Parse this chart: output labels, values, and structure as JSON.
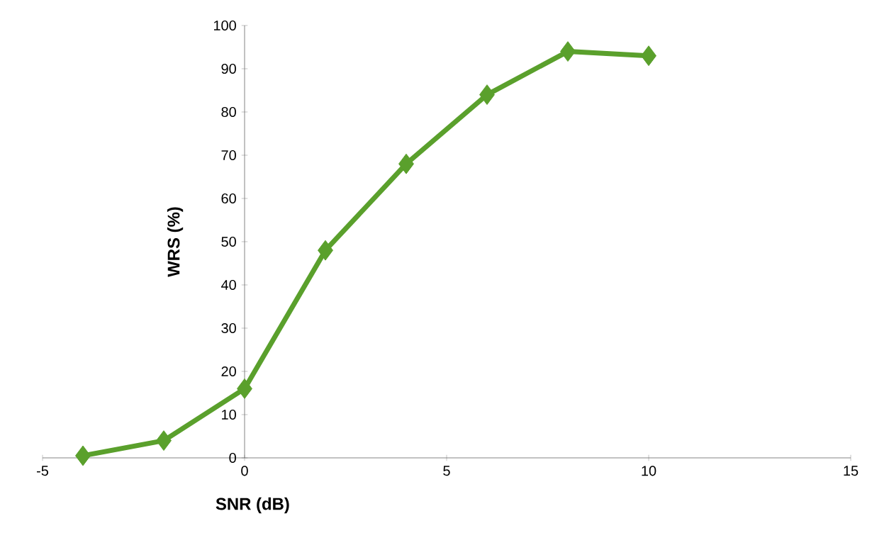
{
  "chart_data": {
    "type": "line",
    "xlabel": "SNR (dB)",
    "ylabel": "WRS (%)",
    "x": [
      -4,
      -2,
      0,
      2,
      4,
      6,
      8,
      10
    ],
    "values": [
      0.5,
      4,
      16,
      48,
      68,
      84,
      94,
      93
    ],
    "color": "#5aa02c",
    "marker": "diamond",
    "line_style": "solid",
    "xlim": [
      -5,
      15
    ],
    "xticks": [
      -5,
      0,
      5,
      10,
      15
    ],
    "ylim": [
      0,
      100
    ],
    "yticks": [
      0,
      10,
      20,
      30,
      40,
      50,
      60,
      70,
      80,
      90,
      100
    ]
  }
}
